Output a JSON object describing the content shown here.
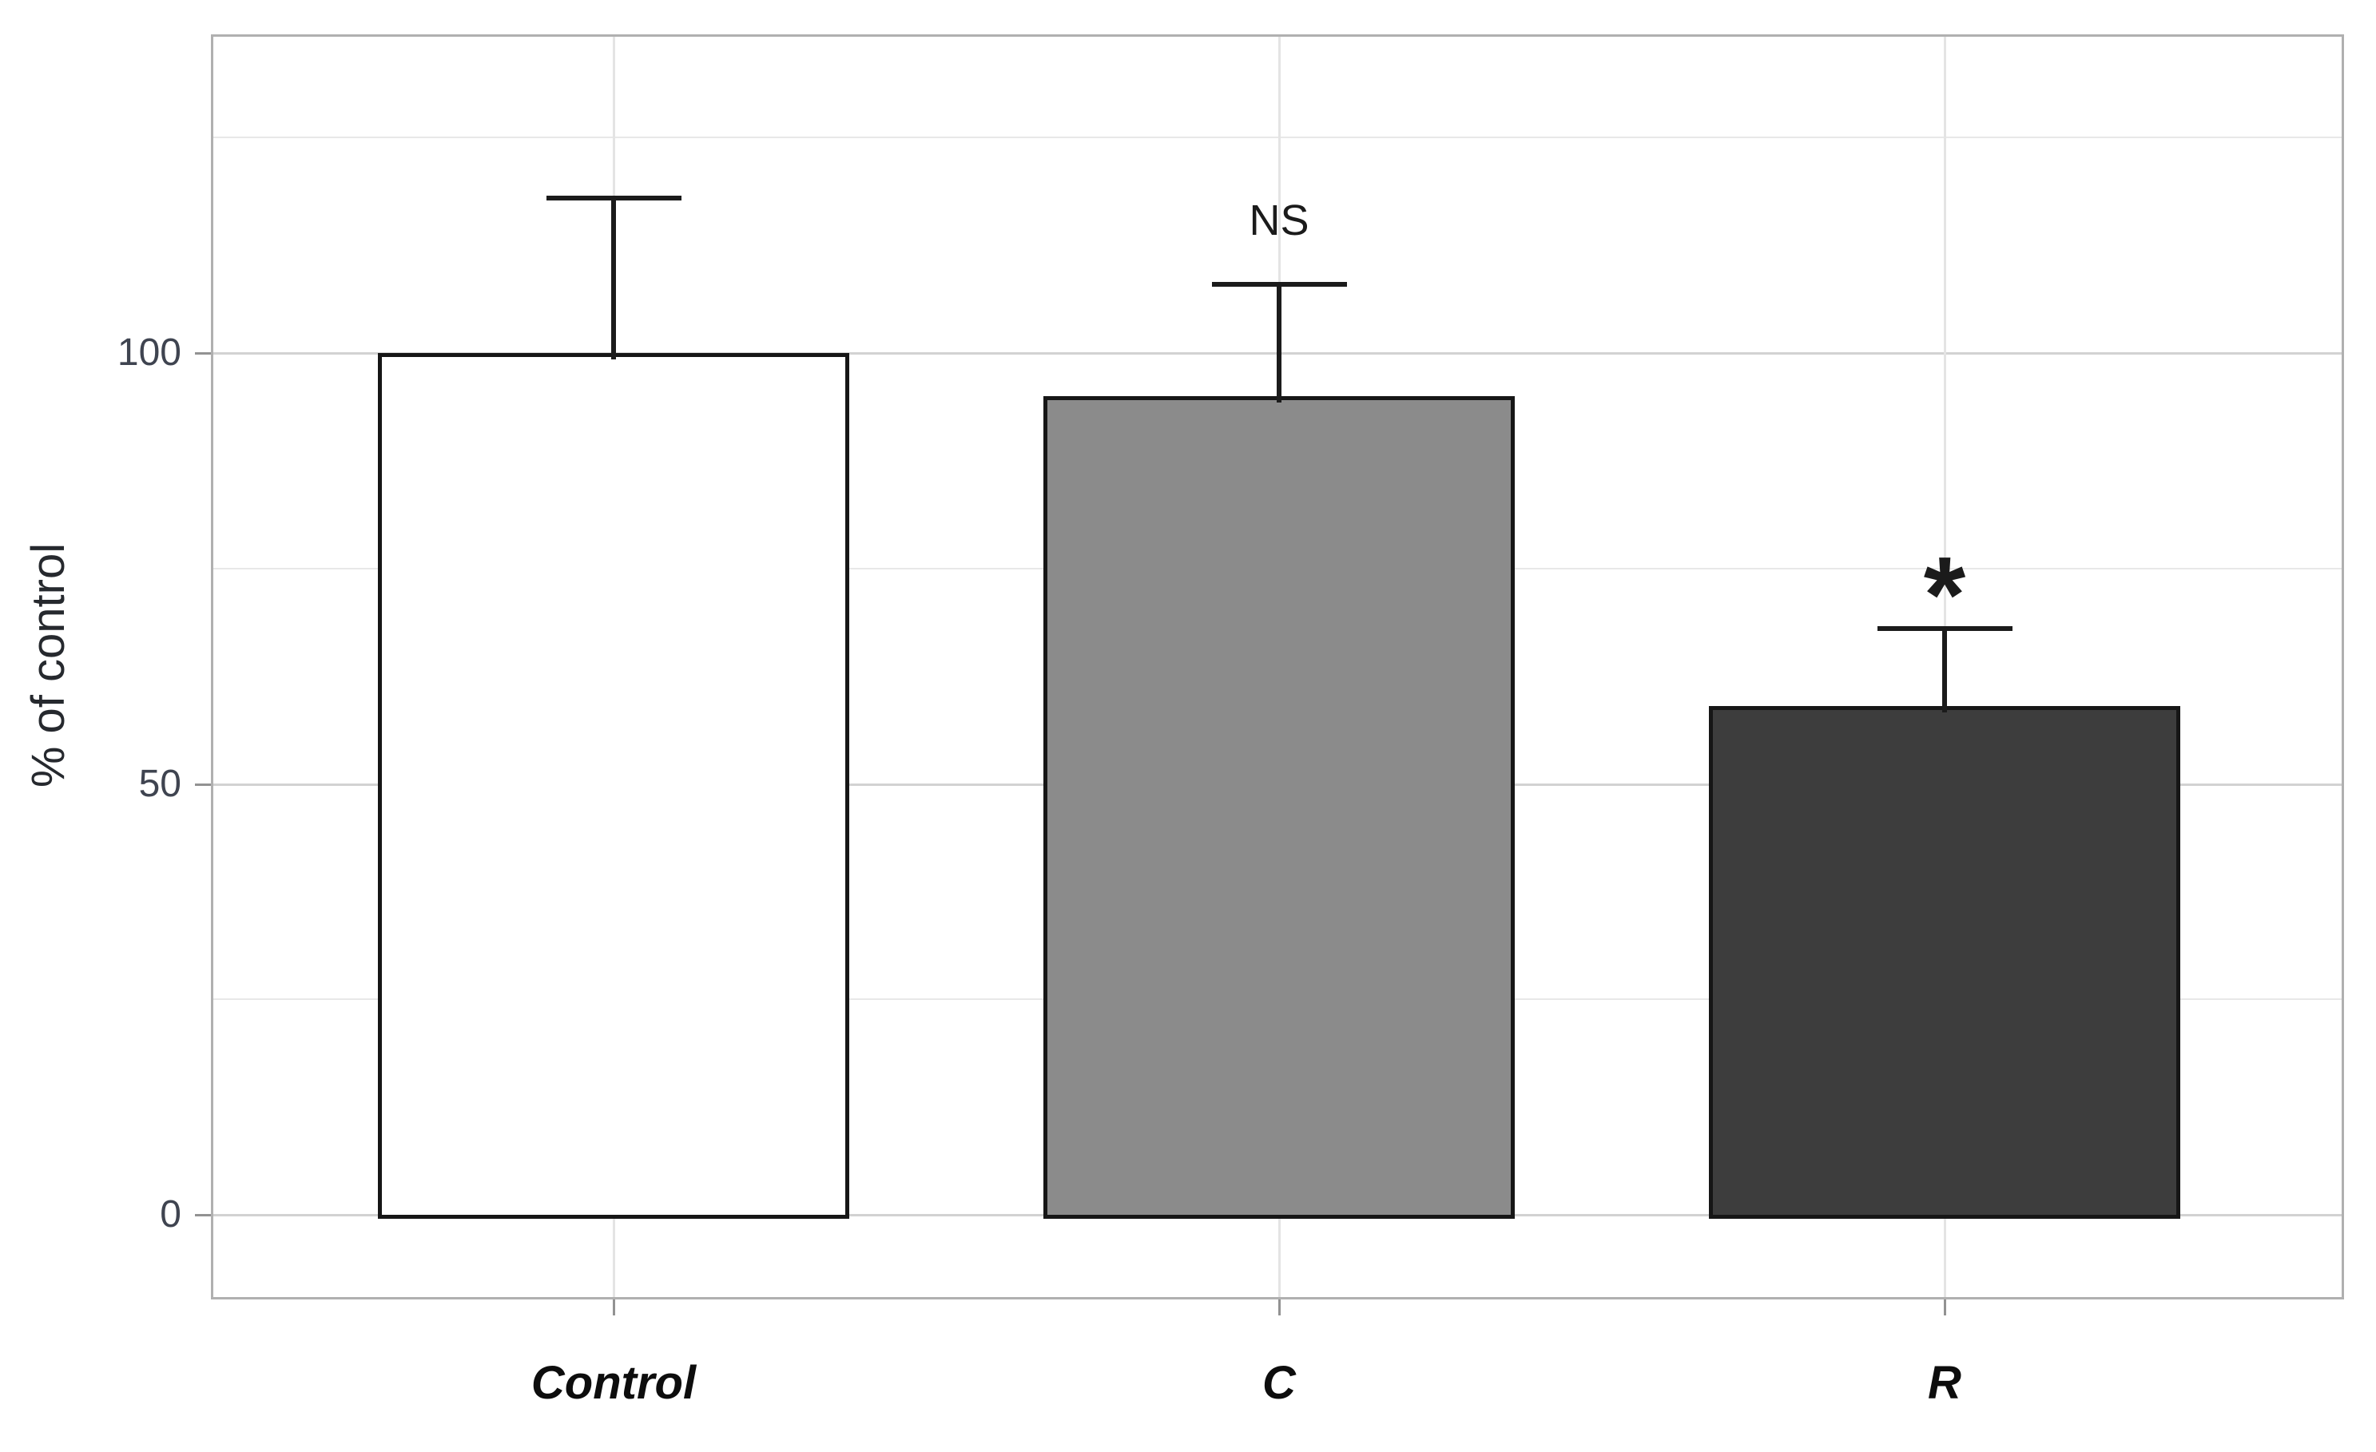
{
  "figure": {
    "background": "#ffffff"
  },
  "chart_data": {
    "type": "bar",
    "title": "",
    "xlabel": "",
    "ylabel": "% of control",
    "categories": [
      "Control",
      "C",
      "R"
    ],
    "values": [
      100,
      95,
      59
    ],
    "error_upper": [
      18,
      13,
      9
    ],
    "annotations": [
      "",
      "NS",
      "*"
    ],
    "yticks_major": [
      0,
      50,
      100
    ],
    "yticks_minor": [
      25,
      75,
      125
    ],
    "ylim": [
      -9.6,
      136.8
    ],
    "grid": "horizontal major+minor, vertical line at each category",
    "legend_position": "none",
    "bar_fill_colors": [
      "#ffffff",
      "#8b8b8b",
      "#3d3d3d"
    ],
    "bar_border_color": "#161616",
    "errorbar_color": "#1b1b1b",
    "gridline_color": "#d2d2d2",
    "minor_gridline_color": "#e8e8e8",
    "panel_border_color": "#b0b0b0",
    "tick_label_color": "#3f4450"
  }
}
